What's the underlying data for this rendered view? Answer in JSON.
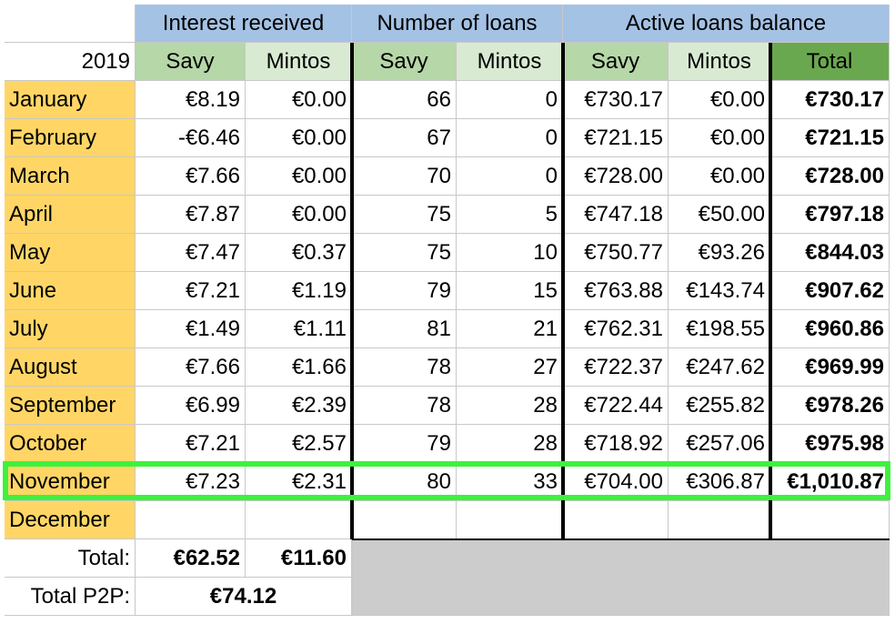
{
  "colors": {
    "group_header_bg": "#a4c2e4",
    "savy_header_bg": "#b6d7a8",
    "mintos_header_bg": "#d9ead3",
    "total_header_bg": "#6aa84f",
    "month_bg": "#ffd666",
    "grey_block": "#cccccc",
    "highlight": "#3df23d"
  },
  "headers": {
    "groups": [
      "Interest received",
      "Number of loans",
      "Active loans balance"
    ],
    "year": "2019",
    "subs": [
      "Savy",
      "Mintos",
      "Savy",
      "Mintos",
      "Savy",
      "Mintos",
      "Total"
    ]
  },
  "rows": [
    {
      "month": "January",
      "int_savy": "€8.19",
      "int_mintos": "€0.00",
      "loans_savy": "66",
      "loans_mintos": "0",
      "bal_savy": "€730.17",
      "bal_mintos": "€0.00",
      "bal_total": "€730.17"
    },
    {
      "month": "February",
      "int_savy": "-€6.46",
      "int_mintos": "€0.00",
      "loans_savy": "67",
      "loans_mintos": "0",
      "bal_savy": "€721.15",
      "bal_mintos": "€0.00",
      "bal_total": "€721.15"
    },
    {
      "month": "March",
      "int_savy": "€7.66",
      "int_mintos": "€0.00",
      "loans_savy": "70",
      "loans_mintos": "0",
      "bal_savy": "€728.00",
      "bal_mintos": "€0.00",
      "bal_total": "€728.00"
    },
    {
      "month": "April",
      "int_savy": "€7.87",
      "int_mintos": "€0.00",
      "loans_savy": "75",
      "loans_mintos": "5",
      "bal_savy": "€747.18",
      "bal_mintos": "€50.00",
      "bal_total": "€797.18"
    },
    {
      "month": "May",
      "int_savy": "€7.47",
      "int_mintos": "€0.37",
      "loans_savy": "75",
      "loans_mintos": "10",
      "bal_savy": "€750.77",
      "bal_mintos": "€93.26",
      "bal_total": "€844.03"
    },
    {
      "month": "June",
      "int_savy": "€7.21",
      "int_mintos": "€1.19",
      "loans_savy": "79",
      "loans_mintos": "15",
      "bal_savy": "€763.88",
      "bal_mintos": "€143.74",
      "bal_total": "€907.62"
    },
    {
      "month": "July",
      "int_savy": "€1.49",
      "int_mintos": "€1.11",
      "loans_savy": "81",
      "loans_mintos": "21",
      "bal_savy": "€762.31",
      "bal_mintos": "€198.55",
      "bal_total": "€960.86"
    },
    {
      "month": "August",
      "int_savy": "€7.66",
      "int_mintos": "€1.66",
      "loans_savy": "78",
      "loans_mintos": "27",
      "bal_savy": "€722.37",
      "bal_mintos": "€247.62",
      "bal_total": "€969.99"
    },
    {
      "month": "September",
      "int_savy": "€6.99",
      "int_mintos": "€2.39",
      "loans_savy": "78",
      "loans_mintos": "28",
      "bal_savy": "€722.44",
      "bal_mintos": "€255.82",
      "bal_total": "€978.26"
    },
    {
      "month": "October",
      "int_savy": "€7.21",
      "int_mintos": "€2.57",
      "loans_savy": "79",
      "loans_mintos": "28",
      "bal_savy": "€718.92",
      "bal_mintos": "€257.06",
      "bal_total": "€975.98"
    },
    {
      "month": "November",
      "int_savy": "€7.23",
      "int_mintos": "€2.31",
      "loans_savy": "80",
      "loans_mintos": "33",
      "bal_savy": "€704.00",
      "bal_mintos": "€306.87",
      "bal_total": "€1,010.87"
    },
    {
      "month": "December",
      "int_savy": "",
      "int_mintos": "",
      "loans_savy": "",
      "loans_mintos": "",
      "bal_savy": "",
      "bal_mintos": "",
      "bal_total": ""
    }
  ],
  "totals": {
    "label": "Total:",
    "int_savy": "€62.52",
    "int_mintos": "€11.60",
    "p2p_label": "Total P2P:",
    "p2p_value": "€74.12"
  }
}
